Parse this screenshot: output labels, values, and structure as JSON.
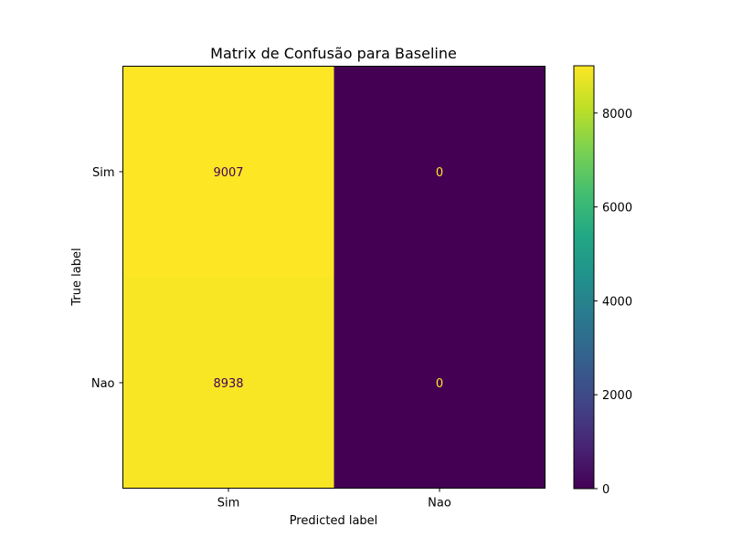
{
  "chart_data": {
    "type": "heatmap",
    "title": "Matrix de Confusão para Baseline",
    "xlabel": "Predicted label",
    "ylabel": "True label",
    "x_categories": [
      "Sim",
      "Nao"
    ],
    "y_categories": [
      "Sim",
      "Nao"
    ],
    "values": [
      [
        9007,
        0
      ],
      [
        8938,
        0
      ]
    ],
    "colormap": "viridis",
    "colorbar": {
      "range": [
        0,
        9007
      ],
      "ticks": [
        0,
        2000,
        4000,
        6000,
        8000
      ],
      "tick_labels": [
        "0",
        "2000",
        "4000",
        "6000",
        "8000"
      ]
    },
    "colors": {
      "high": "#fde725",
      "low": "#440154",
      "text_on_high": "#440154",
      "text_on_low": "#fde725"
    }
  }
}
